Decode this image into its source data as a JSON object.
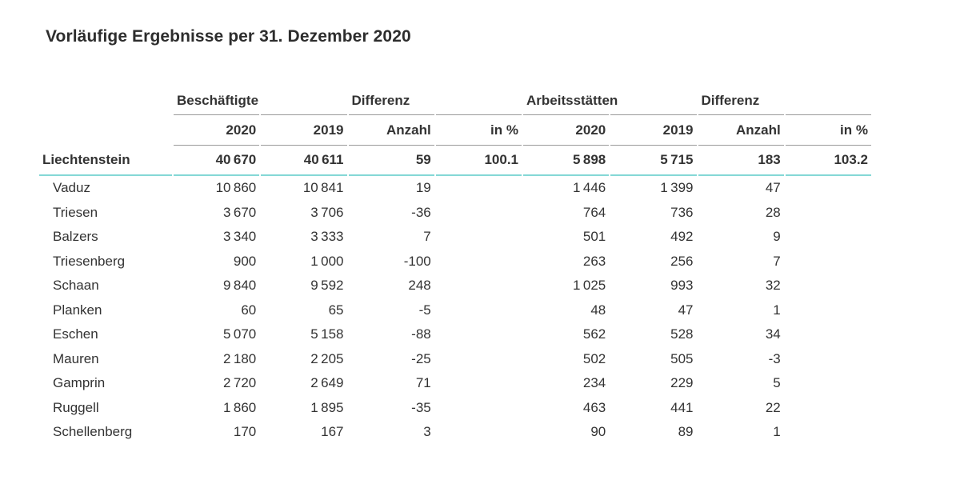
{
  "title": "Vorläufige Ergebnisse per 31. Dezember 2020",
  "colors": {
    "accent_teal": "#85d8d6",
    "line_gray": "#999999",
    "text": "#333333"
  },
  "table": {
    "col_groups": [
      {
        "label": "Beschäftigte",
        "span": 2
      },
      {
        "label": "Differenz",
        "span": 2
      },
      {
        "label": "Arbeitsstätten",
        "span": 2
      },
      {
        "label": "Differenz",
        "span": 2
      }
    ],
    "columns": [
      "2020",
      "2019",
      "Anzahl",
      "in %",
      "2020",
      "2019",
      "Anzahl",
      "in %"
    ],
    "total_row": {
      "name": "Liechtenstein",
      "values": [
        "40 670",
        "40 611",
        "59",
        "100.1",
        "5 898",
        "5 715",
        "183",
        "103.2"
      ]
    },
    "rows": [
      {
        "name": "Vaduz",
        "values": [
          "10 860",
          "10 841",
          "19",
          "",
          "1 446",
          "1 399",
          "47",
          ""
        ]
      },
      {
        "name": "Triesen",
        "values": [
          "3 670",
          "3 706",
          "-36",
          "",
          "764",
          "736",
          "28",
          ""
        ]
      },
      {
        "name": "Balzers",
        "values": [
          "3 340",
          "3 333",
          "7",
          "",
          "501",
          "492",
          "9",
          ""
        ]
      },
      {
        "name": "Triesenberg",
        "values": [
          "900",
          "1 000",
          "-100",
          "",
          "263",
          "256",
          "7",
          ""
        ]
      },
      {
        "name": "Schaan",
        "values": [
          "9 840",
          "9 592",
          "248",
          "",
          "1 025",
          "993",
          "32",
          ""
        ]
      },
      {
        "name": "Planken",
        "values": [
          "60",
          "65",
          "-5",
          "",
          "48",
          "47",
          "1",
          ""
        ]
      },
      {
        "name": "Eschen",
        "values": [
          "5 070",
          "5 158",
          "-88",
          "",
          "562",
          "528",
          "34",
          ""
        ]
      },
      {
        "name": "Mauren",
        "values": [
          "2 180",
          "2 205",
          "-25",
          "",
          "502",
          "505",
          "-3",
          ""
        ]
      },
      {
        "name": "Gamprin",
        "values": [
          "2 720",
          "2 649",
          "71",
          "",
          "234",
          "229",
          "5",
          ""
        ]
      },
      {
        "name": "Ruggell",
        "values": [
          "1 860",
          "1 895",
          "-35",
          "",
          "463",
          "441",
          "22",
          ""
        ]
      },
      {
        "name": "Schellenberg",
        "values": [
          "170",
          "167",
          "3",
          "",
          "90",
          "89",
          "1",
          ""
        ]
      }
    ]
  }
}
